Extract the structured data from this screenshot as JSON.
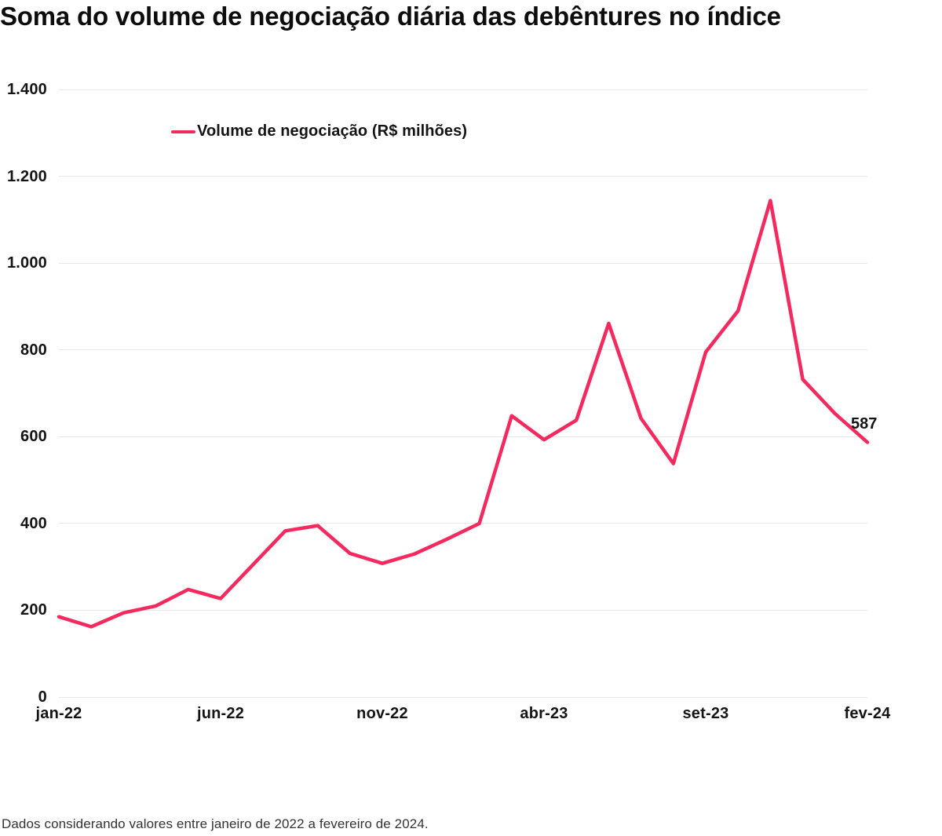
{
  "title": "Soma do volume de negociação diária das debêntures no índice",
  "footer": "Dados considerando valores entre janeiro de 2022 a fevereiro de 2024.",
  "legend": {
    "label": "Volume de negociação (R$ milhões)"
  },
  "end_label": "587",
  "colors": {
    "line": "#F42A5F",
    "grid": "#e7e7e7",
    "text": "#141414",
    "footer_text": "#333333"
  },
  "chart_data": {
    "type": "line",
    "title": "Soma do volume de negociação diária das debêntures no índice",
    "x": [
      "jan-22",
      "fev-22",
      "mar-22",
      "abr-22",
      "mai-22",
      "jun-22",
      "jul-22",
      "ago-22",
      "set-22",
      "out-22",
      "nov-22",
      "dez-22",
      "jan-23",
      "fev-23",
      "mar-23",
      "abr-23",
      "mai-23",
      "jun-23",
      "jul-23",
      "ago-23",
      "set-23",
      "out-23",
      "nov-23",
      "dez-23",
      "jan-24",
      "fev-24"
    ],
    "series": [
      {
        "name": "Volume de negociação (R$ milhões)",
        "values": [
          185,
          162,
          194,
          210,
          248,
          227,
          305,
          383,
          395,
          331,
          308,
          330,
          364,
          400,
          648,
          593,
          638,
          861,
          642,
          538,
          795,
          890,
          1144,
          732,
          653,
          587
        ]
      }
    ],
    "last_point_label": "587",
    "xlabel": "",
    "ylabel": "",
    "ylim": [
      0,
      1400
    ],
    "y_ticks": [
      {
        "value": 0,
        "label": "0"
      },
      {
        "value": 200,
        "label": "200"
      },
      {
        "value": 400,
        "label": "400"
      },
      {
        "value": 600,
        "label": "600"
      },
      {
        "value": 800,
        "label": "800"
      },
      {
        "value": 1000,
        "label": "1.000"
      },
      {
        "value": 1200,
        "label": "1.200"
      },
      {
        "value": 1400,
        "label": "1.400"
      }
    ],
    "x_tick_indices": [
      0,
      5,
      10,
      15,
      20,
      25
    ],
    "x_tick_labels": [
      "jan-22",
      "jun-22",
      "nov-22",
      "abr-23",
      "set-23",
      "fev-24"
    ],
    "grid": "horizontal-only",
    "legend_position": "top-left-inside"
  }
}
